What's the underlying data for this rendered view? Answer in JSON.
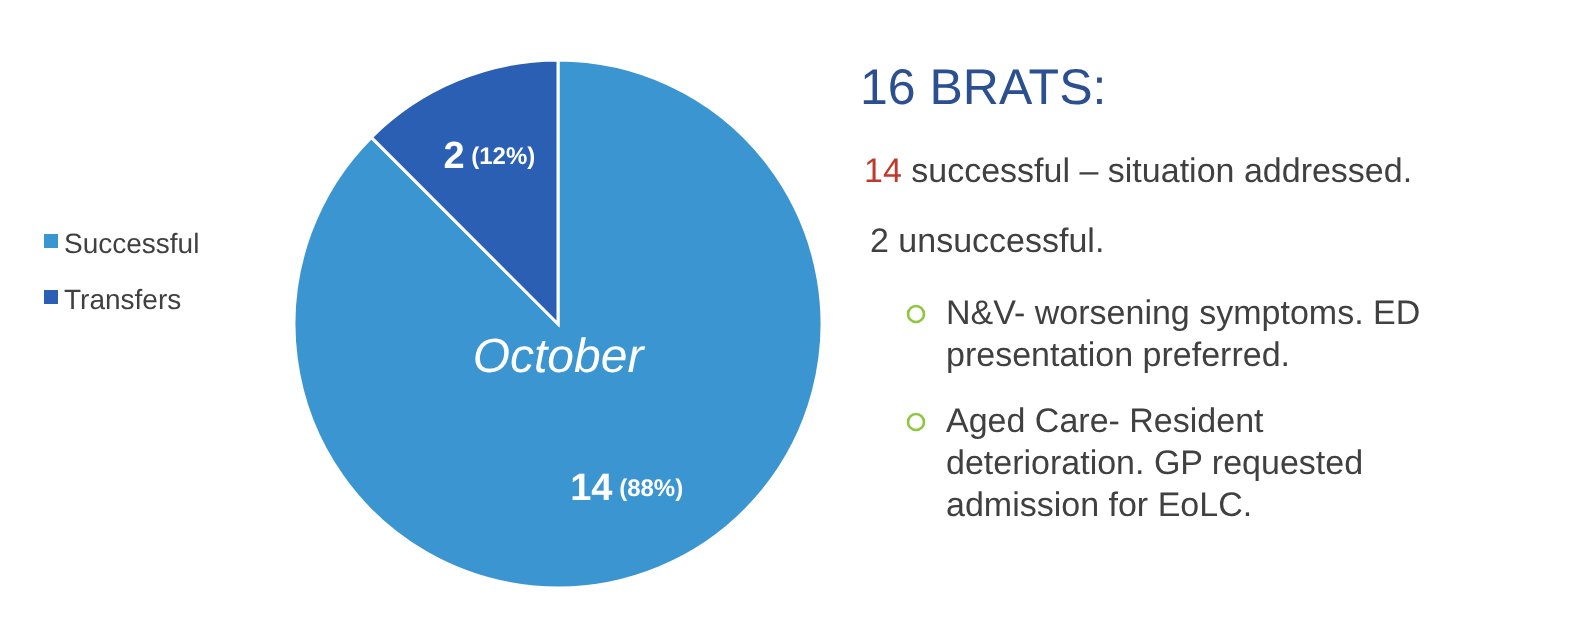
{
  "chart_data": {
    "type": "pie",
    "title": "October",
    "subtitle": "16 BRATS:",
    "categories": [
      "Successful",
      "Transfers"
    ],
    "values": [
      14,
      2
    ],
    "colors": [
      "#3b95d0",
      "#2b5fb4"
    ],
    "value_labels": [
      "14 (88%)",
      "2 (12%)"
    ],
    "legend": "left",
    "annotations": [
      "14 successful – situation addressed.",
      "2 unsuccessful.",
      "N&V- worsening symptoms. ED presentation preferred.",
      "Aged Care- Resident deterioration. GP requested admission for EoLC."
    ]
  }
}
